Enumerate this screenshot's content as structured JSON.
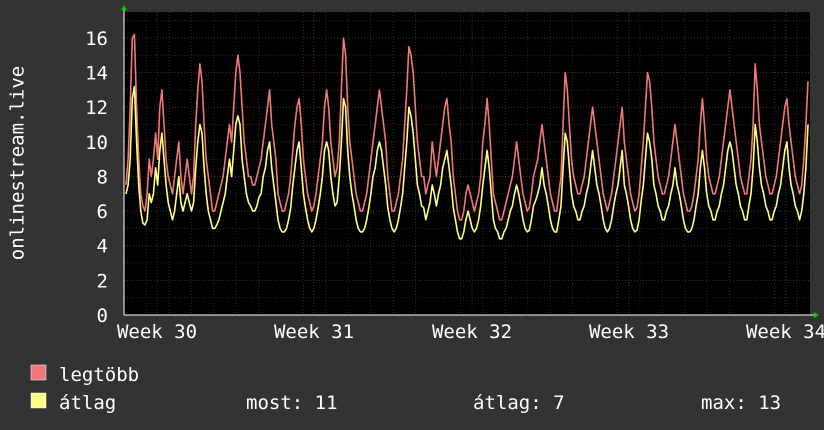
{
  "chart_data": {
    "type": "line",
    "title": "",
    "ylabel": "onlinestream.live",
    "xlabel": "",
    "ylim": [
      0,
      17.5
    ],
    "x_ticks": [
      "Week 30",
      "Week 31",
      "Week 32",
      "Week 33",
      "Week 34"
    ],
    "y_ticks": [
      0,
      2,
      4,
      6,
      8,
      10,
      12,
      14,
      16
    ],
    "grid": true,
    "colors": {
      "background": "#333333",
      "plot_bg": "#000000",
      "grid_major": "#5a2a2a",
      "grid_minor": "#2a2a2a",
      "axis_arrow": "#00cc00"
    },
    "series": [
      {
        "name": "legtöbb",
        "color": "#f07878",
        "values": [
          7.5,
          9,
          12,
          16,
          16.2,
          12,
          9,
          7,
          6.3,
          6,
          7,
          9,
          8,
          9,
          10.5,
          9,
          12,
          13,
          11,
          9,
          8,
          7.5,
          7,
          8,
          9,
          10,
          8,
          7,
          8,
          9,
          8,
          7,
          8,
          11,
          13,
          14.5,
          13.5,
          11,
          9,
          8,
          7,
          6,
          6,
          6.5,
          7,
          7.5,
          8,
          9,
          10,
          11,
          10,
          12,
          14,
          15,
          14,
          12,
          10,
          9,
          8,
          8,
          7.5,
          7.5,
          8,
          8.5,
          9,
          10,
          11,
          12,
          13,
          11,
          10,
          9,
          7,
          6.5,
          6,
          6,
          6.5,
          7,
          8,
          9.5,
          11,
          12,
          12.5,
          11,
          9,
          8,
          7,
          6.5,
          6,
          6.3,
          7,
          8,
          9,
          10,
          12,
          13,
          12,
          10,
          9,
          8,
          8.5,
          10,
          13,
          16,
          15,
          12,
          10,
          9,
          8,
          7,
          6.5,
          6,
          6,
          6.5,
          7,
          8,
          9,
          10,
          11,
          12,
          13,
          12,
          11,
          10,
          8,
          7,
          6,
          6,
          6.5,
          7,
          8,
          9,
          11,
          13,
          15.5,
          15,
          14,
          12,
          10,
          9,
          8,
          8,
          7,
          7.5,
          8,
          10,
          9,
          8,
          9,
          10,
          11,
          12,
          12.5,
          11,
          10,
          8,
          7,
          6,
          5.5,
          5.5,
          6,
          7,
          7.5,
          7,
          6.5,
          6,
          6.5,
          7,
          8,
          10,
          11,
          12.5,
          11,
          9,
          7,
          6.5,
          6,
          5.5,
          5.5,
          6,
          6.5,
          7,
          7.5,
          8,
          9,
          10,
          9,
          8,
          7,
          6.5,
          6,
          6.2,
          7,
          8,
          8.5,
          9,
          10,
          11,
          10,
          9,
          8,
          7,
          6.5,
          6,
          6,
          7,
          8,
          11,
          14,
          13,
          11,
          9,
          8,
          7.5,
          7,
          7,
          7.5,
          8,
          9,
          10,
          11,
          12,
          11,
          10,
          9,
          8,
          7,
          6.5,
          6,
          6.5,
          7,
          8,
          9,
          10,
          11,
          12,
          10,
          9,
          8,
          7,
          6.5,
          6,
          6.2,
          7,
          8.5,
          10,
          12,
          14,
          13.5,
          12,
          10,
          9,
          8,
          7.5,
          7,
          7,
          7.5,
          8,
          9,
          10,
          11,
          10,
          9,
          8,
          7,
          6.5,
          6,
          6,
          6.3,
          7,
          8,
          9,
          11,
          12.5,
          11,
          9,
          8,
          7.5,
          7,
          7,
          7.5,
          8,
          9,
          10,
          11,
          12,
          13,
          12,
          11,
          10,
          9,
          8,
          7.5,
          7,
          7,
          8,
          9,
          11,
          14.5,
          13,
          11,
          10,
          9,
          8,
          7.5,
          7,
          7,
          7.5,
          8,
          9,
          10,
          11,
          12,
          12.5,
          11,
          10,
          9,
          8,
          7.5,
          7,
          7.5,
          9,
          11,
          13.5
        ]
      },
      {
        "name": "átlag",
        "color": "#ffff80",
        "values": [
          7,
          7.5,
          9,
          12.5,
          13.2,
          10,
          7.5,
          6,
          5.3,
          5.2,
          5.5,
          7,
          6.5,
          7,
          8.5,
          7.5,
          9.5,
          10.5,
          9,
          7.5,
          6.5,
          6,
          5.5,
          6,
          7,
          8,
          6.5,
          6,
          6.5,
          7,
          6.5,
          6,
          6.5,
          8.5,
          10,
          11,
          10.5,
          8.5,
          7,
          6,
          5.5,
          5,
          5,
          5.2,
          5.5,
          6,
          6.5,
          7,
          8,
          9,
          8,
          9.5,
          11,
          11.5,
          11,
          9,
          8,
          7,
          6.5,
          6.3,
          6,
          6,
          6.3,
          6.8,
          7,
          8,
          8.5,
          9.5,
          10,
          8.5,
          7.5,
          6.5,
          5.5,
          5,
          4.8,
          4.8,
          5,
          5.5,
          6.2,
          7.5,
          8.5,
          9.5,
          10,
          8.5,
          7,
          6.2,
          5.5,
          5,
          4.8,
          5,
          5.5,
          6.2,
          7,
          8,
          9.5,
          10,
          9.5,
          8,
          7,
          6.3,
          6.5,
          8,
          10,
          12.5,
          12,
          9.5,
          8,
          7,
          6.3,
          5.5,
          5,
          4.8,
          4.8,
          5,
          5.5,
          6.2,
          7,
          8,
          8.5,
          9.5,
          10,
          9.5,
          8.5,
          7.5,
          6.2,
          5.5,
          5,
          4.8,
          5,
          5.5,
          6.2,
          7,
          8.5,
          10,
          12,
          11.5,
          10.5,
          9,
          7.5,
          7,
          6.3,
          6.2,
          5.5,
          6,
          6.5,
          7.5,
          7,
          6.3,
          7,
          7.5,
          8.5,
          9,
          9.5,
          8.5,
          7.5,
          6.2,
          5.5,
          4.8,
          4.4,
          4.4,
          4.8,
          5.5,
          6,
          5.5,
          5,
          4.8,
          5,
          5.5,
          6.3,
          7.5,
          8.5,
          9.5,
          8.5,
          7,
          5.5,
          5,
          4.8,
          4.4,
          4.4,
          4.8,
          5,
          5.5,
          6,
          6.3,
          7,
          7.5,
          7,
          6.3,
          5.5,
          5,
          4.8,
          4.9,
          5.5,
          6.3,
          6.6,
          7,
          7.5,
          8.5,
          7.5,
          7,
          6.3,
          5.5,
          5,
          4.8,
          4.8,
          5.5,
          6.3,
          8.5,
          10.5,
          10,
          8.5,
          7,
          6.3,
          6,
          5.5,
          5.5,
          6,
          6.3,
          7,
          7.5,
          8.5,
          9.5,
          8.5,
          7.5,
          7,
          6.3,
          5.5,
          5,
          4.8,
          5,
          5.5,
          6.3,
          7,
          7.5,
          8.5,
          9.5,
          7.5,
          7,
          6.3,
          5.5,
          5,
          4.8,
          4.9,
          5.5,
          6.6,
          7.5,
          9,
          10.5,
          10,
          9,
          7.5,
          7,
          6.3,
          6,
          5.5,
          5.5,
          6,
          6.3,
          7,
          7.5,
          8.5,
          7.5,
          7,
          6.3,
          5.5,
          5,
          4.8,
          4.8,
          5,
          5.5,
          6.3,
          7,
          8.5,
          9.5,
          8.5,
          7,
          6.3,
          6,
          5.5,
          5.5,
          6,
          6.3,
          7,
          7.5,
          8.5,
          9.5,
          10,
          9.5,
          8.5,
          7.5,
          7,
          6.3,
          6,
          5.5,
          5.5,
          6.3,
          7,
          8.5,
          11,
          10,
          8.5,
          7.5,
          7,
          6.3,
          6,
          5.5,
          5.5,
          6,
          6.3,
          7,
          7.5,
          8.5,
          9.5,
          10,
          8.5,
          7.5,
          7,
          6.3,
          6,
          5.5,
          6,
          7,
          8.5,
          11
        ]
      }
    ],
    "legend": {
      "placement": "bottom-left",
      "items": [
        {
          "label": "legtöbb",
          "color": "#f07878"
        },
        {
          "label": "átlag",
          "color": "#ffff80"
        }
      ],
      "stats": [
        {
          "label": "most:",
          "value": "11"
        },
        {
          "label": "átlag:",
          "value": "7"
        },
        {
          "label": "max:",
          "value": "13"
        }
      ]
    }
  }
}
